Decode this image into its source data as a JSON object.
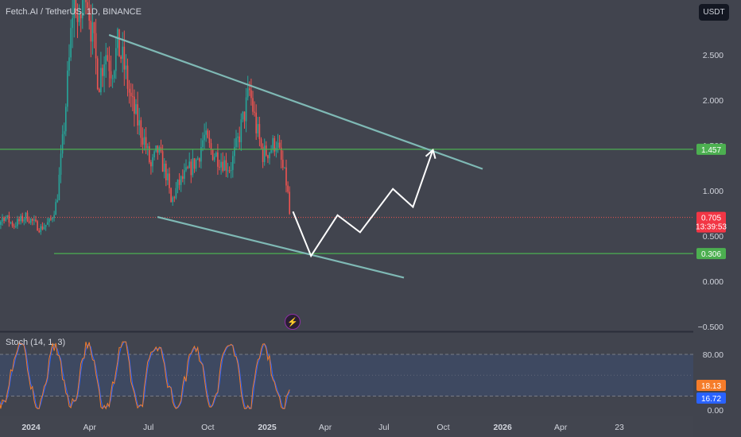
{
  "header": {
    "title": "Fetch.AI / TetherUS, 1D, BINANCE",
    "quote_currency": "USDT"
  },
  "indicator": {
    "label": "Stoch (14, 1, 3)",
    "axis_ticks": [
      "80.00",
      "0.00"
    ],
    "k_value": "18.13",
    "d_value": "16.72",
    "k_color": "#f57c2a",
    "d_color": "#2962ff"
  },
  "price_badges": {
    "resistance": "1.457",
    "current": "0.705",
    "countdown": "13:39:53",
    "support": "0.306"
  },
  "icons": {
    "flash": "lightning-icon"
  },
  "chart_data": {
    "type": "candlestick",
    "symbol": "FETUSDT",
    "interval": "1D",
    "y_ticks": [
      2.5,
      2.0,
      1.5,
      1.0,
      0.5,
      0.0,
      -0.5
    ],
    "y_tick_labels": [
      "2.500",
      "2.000",
      "1.500",
      "1.000",
      "0.500",
      "0.000",
      "−0.500"
    ],
    "x_tick_labels": [
      "2024",
      "Apr",
      "Jul",
      "Oct",
      "2025",
      "Apr",
      "Jul",
      "Oct",
      "2026",
      "Apr",
      "23"
    ],
    "horizontal_levels": [
      {
        "value": 1.457,
        "color": "#4caf50"
      },
      {
        "value": 0.306,
        "color": "#4caf50"
      }
    ],
    "current_price": 0.705,
    "trendlines": [
      {
        "from": [
          "2024-05-01",
          2.72
        ],
        "to": [
          "2025-12-01",
          1.24
        ]
      },
      {
        "from": [
          "2024-07-15",
          0.71
        ],
        "to": [
          "2025-08-01",
          0.04
        ]
      }
    ],
    "projection": [
      [
        "2025-02-10",
        0.77
      ],
      [
        "2025-03-10",
        0.28
      ],
      [
        "2025-04-20",
        0.73
      ],
      [
        "2025-05-25",
        0.54
      ],
      [
        "2025-07-15",
        1.02
      ],
      [
        "2025-08-15",
        0.82
      ],
      [
        "2025-09-15",
        1.45
      ]
    ],
    "price_path": [
      [
        "2023-10-15",
        0.36
      ],
      [
        "2023-11-01",
        0.52
      ],
      [
        "2023-11-20",
        0.72
      ],
      [
        "2023-12-05",
        0.62
      ],
      [
        "2023-12-25",
        0.72
      ],
      [
        "2024-01-15",
        0.58
      ],
      [
        "2024-01-31",
        0.66
      ],
      [
        "2024-02-10",
        0.88
      ],
      [
        "2024-02-20",
        1.6
      ],
      [
        "2024-03-01",
        2.5
      ],
      [
        "2024-03-08",
        3.3
      ],
      [
        "2024-03-15",
        2.7
      ],
      [
        "2024-03-25",
        3.4
      ],
      [
        "2024-04-05",
        2.7
      ],
      [
        "2024-04-15",
        2.2
      ],
      [
        "2024-04-25",
        2.55
      ],
      [
        "2024-05-05",
        2.35
      ],
      [
        "2024-05-15",
        2.6
      ],
      [
        "2024-05-25",
        2.35
      ],
      [
        "2024-06-05",
        1.95
      ],
      [
        "2024-06-15",
        1.75
      ],
      [
        "2024-06-25",
        1.55
      ],
      [
        "2024-07-05",
        1.25
      ],
      [
        "2024-07-15",
        1.45
      ],
      [
        "2024-07-30",
        1.15
      ],
      [
        "2024-08-05",
        0.86
      ],
      [
        "2024-08-15",
        1.05
      ],
      [
        "2024-08-30",
        1.2
      ],
      [
        "2024-09-15",
        1.35
      ],
      [
        "2024-09-25",
        1.6
      ],
      [
        "2024-10-05",
        1.45
      ],
      [
        "2024-10-20",
        1.35
      ],
      [
        "2024-11-05",
        1.25
      ],
      [
        "2024-11-15",
        1.5
      ],
      [
        "2024-11-25",
        1.8
      ],
      [
        "2024-12-05",
        2.1
      ],
      [
        "2024-12-15",
        1.7
      ],
      [
        "2024-12-25",
        1.4
      ],
      [
        "2025-01-05",
        1.45
      ],
      [
        "2025-01-15",
        1.55
      ],
      [
        "2025-01-25",
        1.25
      ],
      [
        "2025-02-01",
        1.05
      ],
      [
        "2025-02-05",
        0.72
      ]
    ],
    "stoch_levels": [
      80,
      20
    ],
    "stoch_k_last": 18.13,
    "stoch_d_last": 16.72
  }
}
